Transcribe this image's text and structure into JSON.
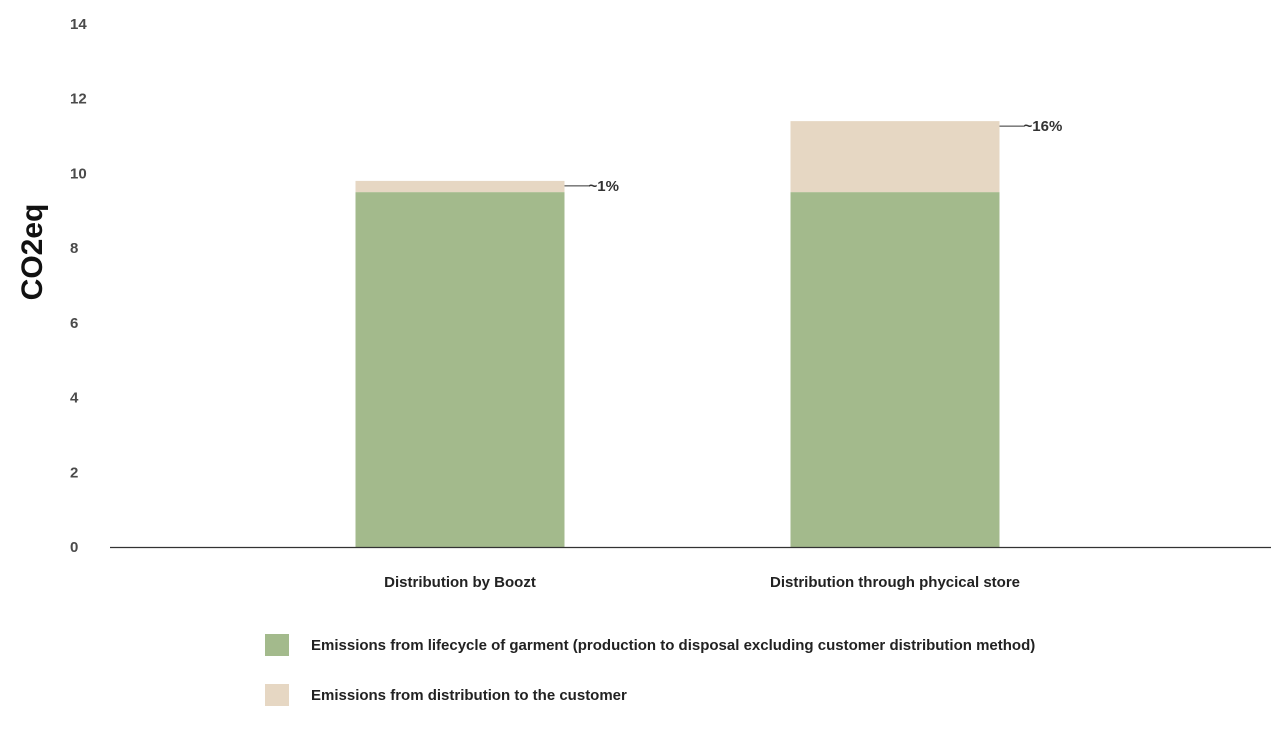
{
  "chart_data": {
    "type": "bar",
    "stacked": true,
    "categories": [
      "Distribution by Boozt",
      "Distribution through phycical store"
    ],
    "series": [
      {
        "name": "Emissions from lifecycle of garment (production to disposal excluding customer distribution method)",
        "values": [
          9.5,
          9.5
        ],
        "color": "#a3ba8c"
      },
      {
        "name": "Emissions from distribution to the customer",
        "values": [
          0.3,
          1.9
        ],
        "color": "#e6d7c3"
      }
    ],
    "annotations": [
      "~1%",
      "~16%"
    ],
    "ylabel": "CO2eq",
    "xlabel": "",
    "title": "",
    "ylim": [
      0,
      14
    ],
    "yticks": [
      0,
      2,
      4,
      6,
      8,
      10,
      12,
      14
    ],
    "grid": false,
    "legend_position": "bottom"
  }
}
